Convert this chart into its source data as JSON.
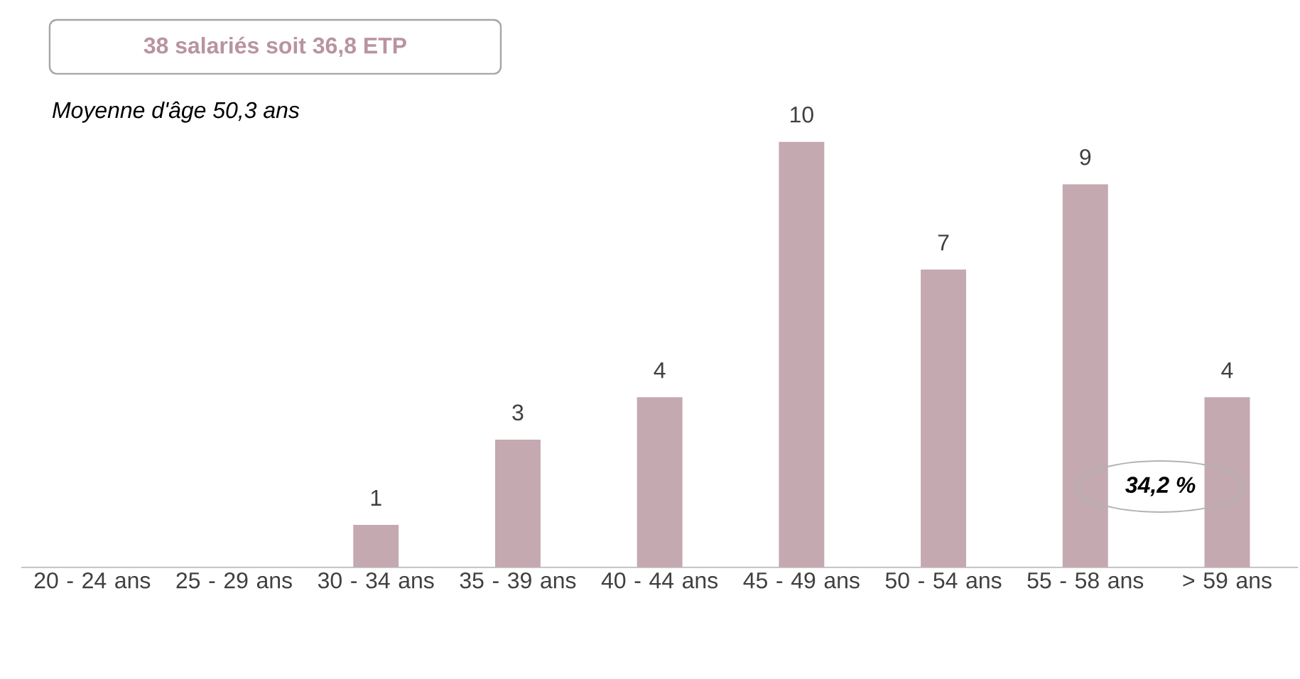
{
  "chart_data": {
    "type": "bar",
    "title": "38 salariés soit 36,8 ETP",
    "subtitle": "Moyenne d'âge 50,3 ans",
    "categories": [
      "20 - 24 ans",
      "25 - 29 ans",
      "30 - 34 ans",
      "35 - 39 ans",
      "40 - 44 ans",
      "45 - 49 ans",
      "50 - 54 ans",
      "55 - 58 ans",
      "> 59 ans"
    ],
    "values": [
      0,
      0,
      1,
      3,
      4,
      10,
      7,
      9,
      4
    ],
    "value_labels": [
      null,
      null,
      "1",
      "3",
      "4",
      "10",
      "7",
      "9",
      "4"
    ],
    "color": "#c4a9b0",
    "annotations": [
      "34,2 %"
    ]
  }
}
